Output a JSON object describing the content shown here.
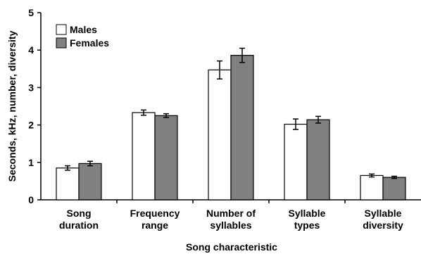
{
  "chart_data": {
    "type": "bar",
    "title": "",
    "xlabel": "Song characteristic",
    "ylabel": "Seconds, kHz, number, diversity",
    "ylim": [
      0,
      5
    ],
    "yticks": [
      "0",
      "1",
      "2",
      "3",
      "4",
      "5"
    ],
    "grid": false,
    "legend_position": "top-left",
    "categories": [
      [
        "Song",
        "duration"
      ],
      [
        "Frequency",
        "range"
      ],
      [
        "Number of",
        "syllables"
      ],
      [
        "Syllable",
        "types"
      ],
      [
        "Syllable",
        "diversity"
      ]
    ],
    "series": [
      {
        "name": "Males",
        "color": "#ffffff",
        "values": [
          0.85,
          2.33,
          3.47,
          2.02,
          0.65
        ],
        "errors": [
          0.06,
          0.07,
          0.24,
          0.14,
          0.04
        ]
      },
      {
        "name": "Females",
        "color": "#808080",
        "values": [
          0.97,
          2.25,
          3.86,
          2.14,
          0.6
        ],
        "errors": [
          0.06,
          0.05,
          0.19,
          0.09,
          0.03
        ]
      }
    ]
  }
}
